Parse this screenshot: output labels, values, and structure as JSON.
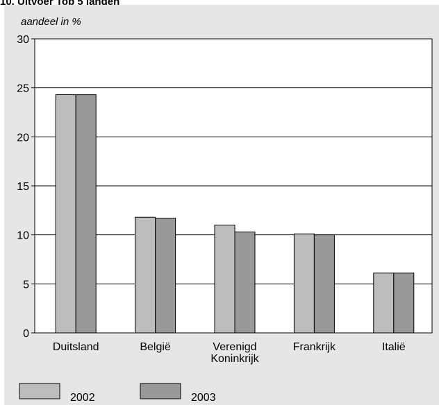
{
  "page": {
    "title": "10. Uitvoer Top 5 landen"
  },
  "chart_data": {
    "type": "bar",
    "ylabel": "aandeel in %",
    "ylim": [
      0,
      30
    ],
    "yticks": [
      0,
      5,
      10,
      15,
      20,
      25,
      30
    ],
    "grid": true,
    "legend_position": "bottom-left",
    "categories": [
      "Duitsland",
      "België",
      "Verenigd Koninkrijk",
      "Frankrijk",
      "Italië"
    ],
    "category_lines": [
      [
        "Duitsland"
      ],
      [
        "België"
      ],
      [
        "Verenigd",
        "Koninkrijk"
      ],
      [
        "Frankrijk"
      ],
      [
        "Italië"
      ]
    ],
    "series": [
      {
        "name": "2002",
        "color": "#bdbdbd",
        "values": [
          24.3,
          11.8,
          11.0,
          10.1,
          6.1
        ]
      },
      {
        "name": "2003",
        "color": "#999999",
        "values": [
          24.3,
          11.7,
          10.3,
          10.0,
          6.1
        ]
      }
    ]
  }
}
